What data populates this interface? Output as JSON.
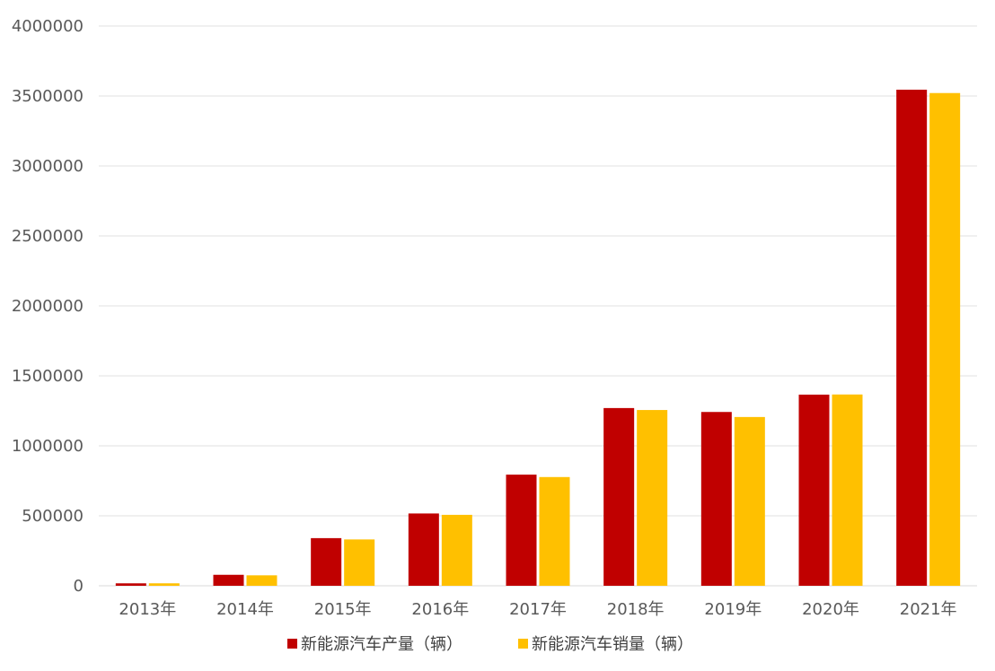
{
  "chart_data": {
    "type": "bar",
    "title": "",
    "xlabel": "",
    "ylabel": "",
    "categories": [
      "2013年",
      "2014年",
      "2015年",
      "2016年",
      "2017年",
      "2018年",
      "2019年",
      "2020年",
      "2021年"
    ],
    "series": [
      {
        "name": "新能源汽车产量（辆）",
        "color": "#C00000",
        "values": [
          17533,
          78499,
          340471,
          516600,
          794160,
          1270000,
          1242000,
          1366000,
          3545000
        ]
      },
      {
        "name": "新能源汽车销量（辆）",
        "color": "#FFC000",
        "values": [
          17642,
          74763,
          331092,
          507000,
          777000,
          1256000,
          1206000,
          1367000,
          3521000
        ]
      }
    ],
    "ylim": [
      0,
      4000000
    ],
    "yticks": [
      "0",
      "500000",
      "1000000",
      "1500000",
      "2000000",
      "2500000",
      "3000000",
      "3500000",
      "4000000"
    ],
    "grid": true,
    "legend_position": "bottom"
  }
}
